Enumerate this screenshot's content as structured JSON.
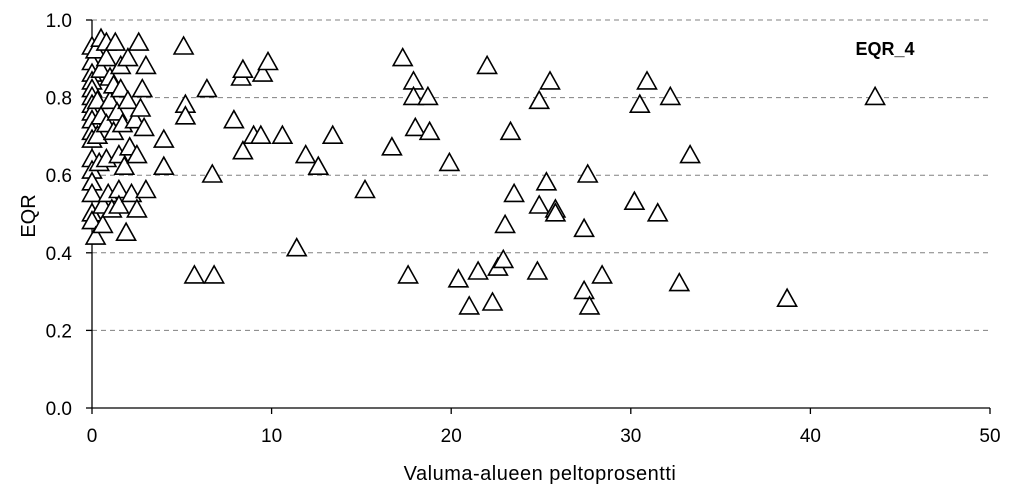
{
  "chart_data": {
    "type": "scatter",
    "title": "",
    "annotation": "EQR_4",
    "xlabel": "Valuma-alueen peltoprosentti",
    "ylabel": "EQR",
    "xlim": [
      0,
      50
    ],
    "ylim": [
      0.0,
      1.0
    ],
    "x_ticks": [
      "0",
      "10",
      "20",
      "30",
      "40",
      "50"
    ],
    "y_ticks": [
      "0.0",
      "0.2",
      "0.4",
      "0.6",
      "0.8",
      "1.0"
    ],
    "grid": "horizontal dashed",
    "marker": "open triangle",
    "series": [
      {
        "points": [
          [
            0.0,
            0.93
          ],
          [
            0.0,
            0.89
          ],
          [
            0.0,
            0.86
          ],
          [
            0.0,
            0.84
          ],
          [
            0.0,
            0.82
          ],
          [
            0.0,
            0.8
          ],
          [
            0.0,
            0.78
          ],
          [
            0.0,
            0.76
          ],
          [
            0.0,
            0.74
          ],
          [
            0.0,
            0.71
          ],
          [
            0.0,
            0.69
          ],
          [
            0.0,
            0.64
          ],
          [
            0.0,
            0.61
          ],
          [
            0.0,
            0.58
          ],
          [
            0.0,
            0.55
          ],
          [
            0.0,
            0.5
          ],
          [
            0.0,
            0.48
          ],
          [
            0.2,
            0.44
          ],
          [
            0.2,
            0.92
          ],
          [
            0.3,
            0.79
          ],
          [
            0.3,
            0.7
          ],
          [
            0.4,
            0.63
          ],
          [
            0.5,
            0.95
          ],
          [
            0.5,
            0.87
          ],
          [
            0.5,
            0.75
          ],
          [
            0.6,
            0.52
          ],
          [
            0.6,
            0.47
          ],
          [
            0.8,
            0.94
          ],
          [
            0.8,
            0.9
          ],
          [
            0.8,
            0.73
          ],
          [
            0.8,
            0.64
          ],
          [
            0.9,
            0.55
          ],
          [
            1.0,
            0.85
          ],
          [
            1.0,
            0.79
          ],
          [
            1.1,
            0.51
          ],
          [
            1.2,
            0.83
          ],
          [
            1.2,
            0.71
          ],
          [
            1.3,
            0.94
          ],
          [
            1.4,
            0.76
          ],
          [
            1.5,
            0.65
          ],
          [
            1.5,
            0.56
          ],
          [
            1.5,
            0.52
          ],
          [
            1.6,
            0.88
          ],
          [
            1.6,
            0.82
          ],
          [
            1.7,
            0.73
          ],
          [
            1.8,
            0.62
          ],
          [
            1.9,
            0.45
          ],
          [
            2.0,
            0.9
          ],
          [
            2.0,
            0.79
          ],
          [
            2.1,
            0.67
          ],
          [
            2.2,
            0.55
          ],
          [
            2.4,
            0.74
          ],
          [
            2.5,
            0.65
          ],
          [
            2.5,
            0.51
          ],
          [
            2.6,
            0.94
          ],
          [
            2.7,
            0.77
          ],
          [
            2.8,
            0.82
          ],
          [
            2.9,
            0.72
          ],
          [
            3.0,
            0.88
          ],
          [
            3.0,
            0.56
          ],
          [
            4.0,
            0.69
          ],
          [
            4.0,
            0.62
          ],
          [
            5.1,
            0.93
          ],
          [
            5.2,
            0.78
          ],
          [
            5.2,
            0.75
          ],
          [
            5.7,
            0.34
          ],
          [
            6.4,
            0.82
          ],
          [
            6.7,
            0.6
          ],
          [
            6.8,
            0.34
          ],
          [
            7.9,
            0.74
          ],
          [
            8.3,
            0.85
          ],
          [
            8.4,
            0.87
          ],
          [
            8.4,
            0.66
          ],
          [
            9.0,
            0.7
          ],
          [
            9.4,
            0.7
          ],
          [
            9.5,
            0.86
          ],
          [
            9.8,
            0.89
          ],
          [
            10.6,
            0.7
          ],
          [
            11.4,
            0.41
          ],
          [
            11.9,
            0.65
          ],
          [
            12.6,
            0.62
          ],
          [
            13.4,
            0.7
          ],
          [
            15.2,
            0.56
          ],
          [
            16.7,
            0.67
          ],
          [
            17.3,
            0.9
          ],
          [
            17.6,
            0.34
          ],
          [
            17.9,
            0.84
          ],
          [
            17.9,
            0.8
          ],
          [
            18.0,
            0.72
          ],
          [
            18.7,
            0.8
          ],
          [
            18.8,
            0.71
          ],
          [
            19.9,
            0.63
          ],
          [
            20.4,
            0.33
          ],
          [
            21.0,
            0.26
          ],
          [
            21.5,
            0.35
          ],
          [
            22.0,
            0.88
          ],
          [
            22.3,
            0.27
          ],
          [
            22.6,
            0.36
          ],
          [
            22.9,
            0.38
          ],
          [
            23.0,
            0.47
          ],
          [
            23.3,
            0.71
          ],
          [
            23.5,
            0.55
          ],
          [
            24.8,
            0.35
          ],
          [
            24.9,
            0.79
          ],
          [
            24.9,
            0.52
          ],
          [
            25.3,
            0.58
          ],
          [
            25.5,
            0.84
          ],
          [
            25.8,
            0.51
          ],
          [
            25.8,
            0.5
          ],
          [
            27.4,
            0.46
          ],
          [
            27.4,
            0.3
          ],
          [
            27.6,
            0.6
          ],
          [
            27.7,
            0.26
          ],
          [
            28.4,
            0.34
          ],
          [
            30.2,
            0.53
          ],
          [
            30.5,
            0.78
          ],
          [
            30.9,
            0.84
          ],
          [
            31.5,
            0.5
          ],
          [
            32.2,
            0.8
          ],
          [
            32.7,
            0.32
          ],
          [
            33.3,
            0.65
          ],
          [
            38.7,
            0.28
          ],
          [
            43.6,
            0.8
          ]
        ]
      }
    ]
  }
}
